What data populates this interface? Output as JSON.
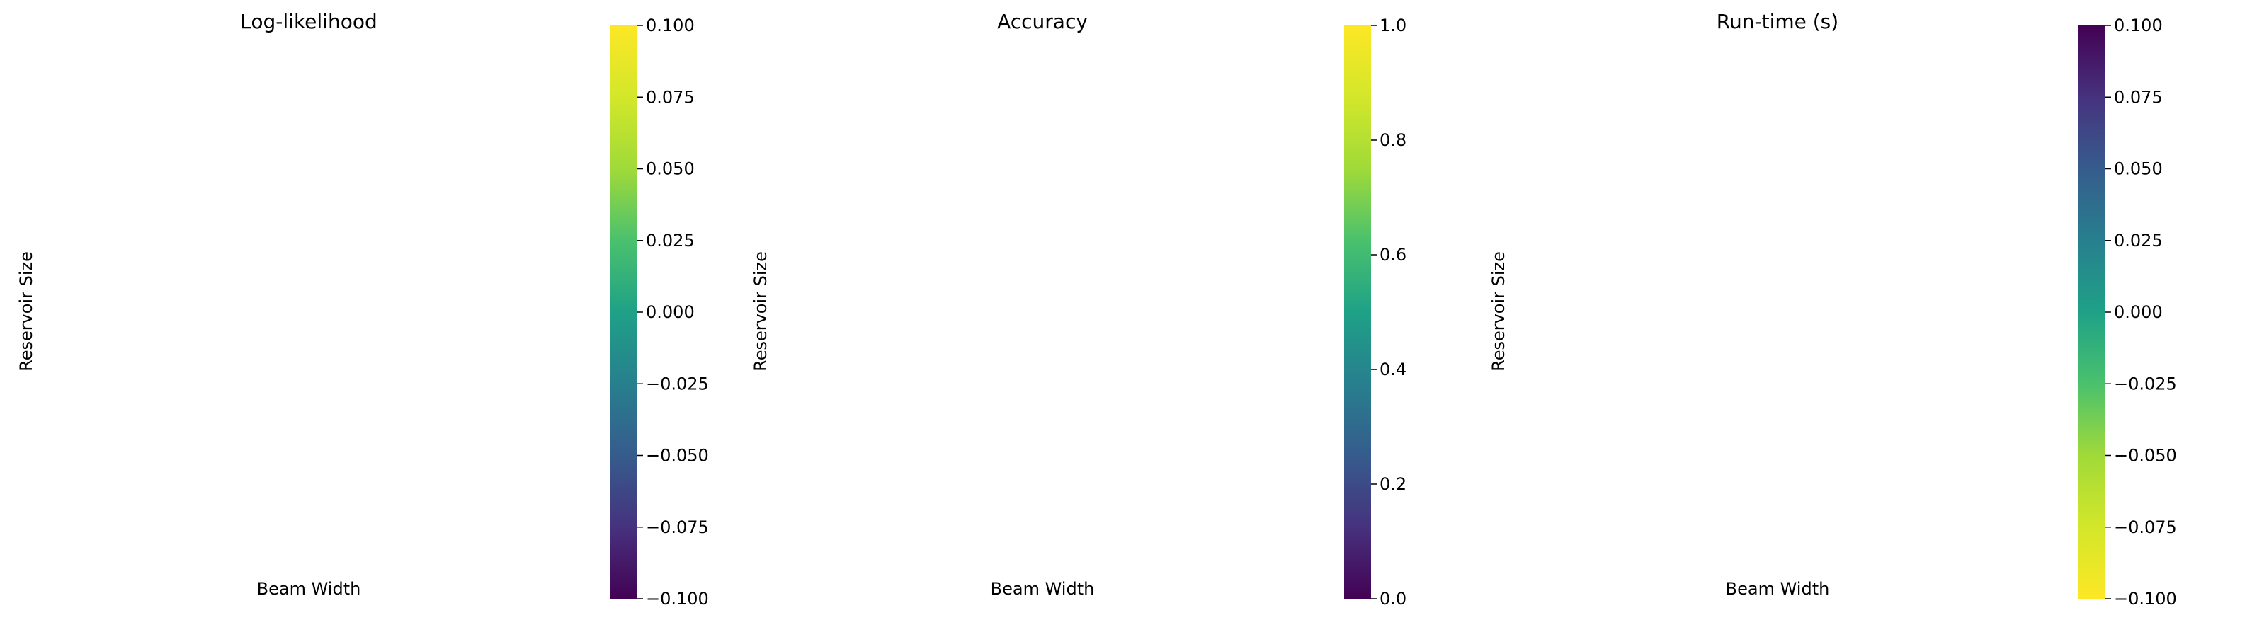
{
  "chart_data": [
    {
      "type": "heatmap",
      "title": "Log-likelihood",
      "xlabel": "Beam Width",
      "ylabel": "Reservoir Size",
      "x": [],
      "y": [],
      "values": [],
      "colormap": "viridis",
      "colorbar": {
        "range": [
          -0.1,
          0.1
        ],
        "reversed": false,
        "ticks": [
          -0.1,
          -0.075,
          -0.05,
          -0.025,
          0.0,
          0.025,
          0.05,
          0.075,
          0.1
        ],
        "tick_labels": [
          "−0.100",
          "−0.075",
          "−0.050",
          "−0.025",
          "0.000",
          "0.025",
          "0.050",
          "0.075",
          "0.100"
        ]
      }
    },
    {
      "type": "heatmap",
      "title": "Accuracy",
      "xlabel": "Beam Width",
      "ylabel": "Reservoir Size",
      "x": [],
      "y": [],
      "values": [],
      "colormap": "viridis",
      "colorbar": {
        "range": [
          0,
          1
        ],
        "reversed": false,
        "ticks": [
          0,
          0.2,
          0.4,
          0.6,
          0.8,
          1.0
        ],
        "tick_labels": [
          "0.0",
          "0.2",
          "0.4",
          "0.6",
          "0.8",
          "1.0"
        ]
      }
    },
    {
      "type": "heatmap",
      "title": "Run-time (s)",
      "xlabel": "Beam Width",
      "ylabel": "Reservoir Size",
      "x": [],
      "y": [],
      "values": [],
      "colormap": "viridis_r",
      "colorbar": {
        "range": [
          -0.1,
          0.1
        ],
        "reversed": true,
        "ticks": [
          -0.1,
          -0.075,
          -0.05,
          -0.025,
          0.0,
          0.025,
          0.05,
          0.075,
          0.1
        ],
        "tick_labels": [
          "−0.100",
          "−0.075",
          "−0.050",
          "−0.025",
          "0.000",
          "0.025",
          "0.050",
          "0.075",
          "0.100"
        ]
      }
    }
  ]
}
